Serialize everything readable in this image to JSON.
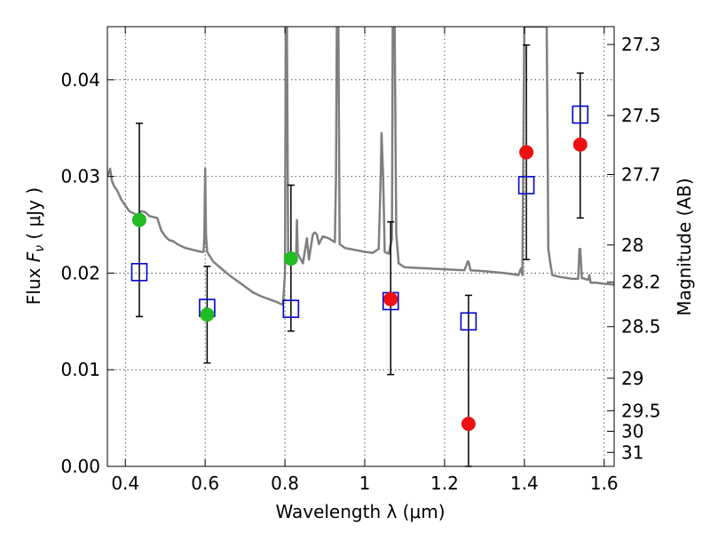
{
  "chart_data": {
    "type": "scatter",
    "xlabel": "Wavelength  λ (μm)",
    "ylabel_parts": {
      "flux": "Flux ",
      "symbol": "F",
      "sub": "ν",
      "unit": "  ( μJy )"
    },
    "ylabel_right": "Magnitude (AB)",
    "xlim": [
      0.355,
      1.625
    ],
    "ylim": [
      0,
      0.0455
    ],
    "x_ticks": [
      {
        "value": 0.4,
        "label": "0.4"
      },
      {
        "value": 0.6,
        "label": "0.6"
      },
      {
        "value": 0.8,
        "label": "0.8"
      },
      {
        "value": 1.0,
        "label": "1"
      },
      {
        "value": 1.2,
        "label": "1.2"
      },
      {
        "value": 1.4,
        "label": "1.4"
      },
      {
        "value": 1.6,
        "label": "1.6"
      }
    ],
    "y_ticks": [
      {
        "value": 0.0,
        "label": "0.00"
      },
      {
        "value": 0.01,
        "label": "0.01"
      },
      {
        "value": 0.02,
        "label": "0.02"
      },
      {
        "value": 0.03,
        "label": "0.03"
      },
      {
        "value": 0.04,
        "label": "0.04"
      }
    ],
    "mag_ticks": [
      {
        "mag": 27.3,
        "label": "27.3"
      },
      {
        "mag": 27.5,
        "label": "27.5"
      },
      {
        "mag": 27.7,
        "label": "27.7"
      },
      {
        "mag": 28.0,
        "label": "28"
      },
      {
        "mag": 28.2,
        "label": "28.2"
      },
      {
        "mag": 28.5,
        "label": "28.5"
      },
      {
        "mag": 29.0,
        "label": "29"
      },
      {
        "mag": 29.5,
        "label": "29.5"
      },
      {
        "mag": 30.0,
        "label": "30"
      },
      {
        "mag": 31.0,
        "label": "31"
      }
    ],
    "grid": true,
    "series": [
      {
        "marker": "open-square",
        "color": "#0000cc",
        "points": [
          {
            "x": 0.435,
            "y": 0.0201,
            "yerr_low": 0.0155,
            "yerr_high": 0.0355
          },
          {
            "x": 0.605,
            "y": 0.0164,
            "yerr_low": 0.0107,
            "yerr_high": 0.0207
          },
          {
            "x": 0.815,
            "y": 0.0163,
            "yerr_low": 0.014,
            "yerr_high": 0.0291
          },
          {
            "x": 1.065,
            "y": 0.0171,
            "yerr_low": 0.0095,
            "yerr_high": 0.0253
          },
          {
            "x": 1.26,
            "y": 0.015,
            "yerr_low": 0.0,
            "yerr_high": 0.0177
          },
          {
            "x": 1.405,
            "y": 0.0291,
            "yerr_low": 0.0214,
            "yerr_high": 0.0436
          },
          {
            "x": 1.54,
            "y": 0.0364,
            "yerr_low": 0.0257,
            "yerr_high": 0.0407
          }
        ]
      },
      {
        "marker": "filled-circle",
        "color": "#22bb22",
        "points": [
          {
            "x": 0.435,
            "y": 0.0255
          },
          {
            "x": 0.605,
            "y": 0.0157
          },
          {
            "x": 0.815,
            "y": 0.0215
          }
        ]
      },
      {
        "marker": "filled-circle",
        "color": "#ee1111",
        "points": [
          {
            "x": 1.065,
            "y": 0.0173
          },
          {
            "x": 1.26,
            "y": 0.0044
          },
          {
            "x": 1.405,
            "y": 0.0325
          },
          {
            "x": 1.54,
            "y": 0.0333
          }
        ]
      }
    ],
    "model_spectrum": {
      "color": "#7f7f7f",
      "points": [
        [
          0.355,
          0.03
        ],
        [
          0.362,
          0.0308
        ],
        [
          0.366,
          0.0296
        ],
        [
          0.372,
          0.029
        ],
        [
          0.38,
          0.0285
        ],
        [
          0.39,
          0.0276
        ],
        [
          0.4,
          0.027
        ],
        [
          0.41,
          0.0264
        ],
        [
          0.42,
          0.0262
        ],
        [
          0.43,
          0.026
        ],
        [
          0.44,
          0.0264
        ],
        [
          0.45,
          0.0263
        ],
        [
          0.46,
          0.0259
        ],
        [
          0.47,
          0.0258
        ],
        [
          0.48,
          0.0257
        ],
        [
          0.49,
          0.0244
        ],
        [
          0.5,
          0.0238
        ],
        [
          0.51,
          0.0234
        ],
        [
          0.52,
          0.0233
        ],
        [
          0.53,
          0.023
        ],
        [
          0.54,
          0.0228
        ],
        [
          0.55,
          0.0226
        ],
        [
          0.56,
          0.0225
        ],
        [
          0.57,
          0.0224
        ],
        [
          0.58,
          0.0223
        ],
        [
          0.59,
          0.0222
        ],
        [
          0.596,
          0.0222
        ],
        [
          0.598,
          0.024
        ],
        [
          0.6,
          0.0308
        ],
        [
          0.602,
          0.024
        ],
        [
          0.605,
          0.0222
        ],
        [
          0.62,
          0.0212
        ],
        [
          0.64,
          0.0205
        ],
        [
          0.66,
          0.0198
        ],
        [
          0.68,
          0.0192
        ],
        [
          0.7,
          0.0186
        ],
        [
          0.72,
          0.018
        ],
        [
          0.74,
          0.0176
        ],
        [
          0.76,
          0.0173
        ],
        [
          0.78,
          0.017
        ],
        [
          0.795,
          0.0167
        ],
        [
          0.8,
          0.02
        ],
        [
          0.802,
          0.0455
        ],
        [
          0.805,
          0.0455
        ],
        [
          0.808,
          0.022
        ],
        [
          0.812,
          0.0215
        ],
        [
          0.82,
          0.0212
        ],
        [
          0.828,
          0.022
        ],
        [
          0.83,
          0.0255
        ],
        [
          0.832,
          0.022
        ],
        [
          0.845,
          0.021
        ],
        [
          0.855,
          0.0236
        ],
        [
          0.86,
          0.0214
        ],
        [
          0.87,
          0.024
        ],
        [
          0.875,
          0.0242
        ],
        [
          0.88,
          0.024
        ],
        [
          0.885,
          0.023
        ],
        [
          0.895,
          0.0238
        ],
        [
          0.91,
          0.0236
        ],
        [
          0.925,
          0.0232
        ],
        [
          0.928,
          0.03
        ],
        [
          0.93,
          0.0455
        ],
        [
          0.934,
          0.0455
        ],
        [
          0.937,
          0.023
        ],
        [
          0.95,
          0.0226
        ],
        [
          0.975,
          0.0224
        ],
        [
          1.0,
          0.0222
        ],
        [
          1.02,
          0.0221
        ],
        [
          1.035,
          0.0225
        ],
        [
          1.04,
          0.03
        ],
        [
          1.042,
          0.0345
        ],
        [
          1.046,
          0.03
        ],
        [
          1.05,
          0.0222
        ],
        [
          1.06,
          0.022
        ],
        [
          1.068,
          0.0235
        ],
        [
          1.07,
          0.0455
        ],
        [
          1.075,
          0.0455
        ],
        [
          1.079,
          0.024
        ],
        [
          1.082,
          0.0225
        ],
        [
          1.085,
          0.021
        ],
        [
          1.1,
          0.0206
        ],
        [
          1.15,
          0.0205
        ],
        [
          1.2,
          0.0204
        ],
        [
          1.25,
          0.0203
        ],
        [
          1.258,
          0.0212
        ],
        [
          1.26,
          0.0212
        ],
        [
          1.265,
          0.0203
        ],
        [
          1.3,
          0.0202
        ],
        [
          1.35,
          0.02
        ],
        [
          1.385,
          0.0198
        ],
        [
          1.392,
          0.0205
        ],
        [
          1.395,
          0.0198
        ],
        [
          1.4,
          0.0455
        ],
        [
          1.41,
          0.0455
        ],
        [
          1.42,
          0.0455
        ],
        [
          1.44,
          0.0455
        ],
        [
          1.456,
          0.0455
        ],
        [
          1.458,
          0.035
        ],
        [
          1.46,
          0.0225
        ],
        [
          1.465,
          0.021
        ],
        [
          1.47,
          0.0198
        ],
        [
          1.49,
          0.0196
        ],
        [
          1.52,
          0.0194
        ],
        [
          1.535,
          0.0194
        ],
        [
          1.538,
          0.0225
        ],
        [
          1.54,
          0.0225
        ],
        [
          1.544,
          0.0195
        ],
        [
          1.56,
          0.0193
        ],
        [
          1.563,
          0.0198
        ],
        [
          1.566,
          0.019
        ],
        [
          1.58,
          0.019
        ],
        [
          1.6,
          0.0189
        ],
        [
          1.625,
          0.0188
        ]
      ]
    }
  }
}
